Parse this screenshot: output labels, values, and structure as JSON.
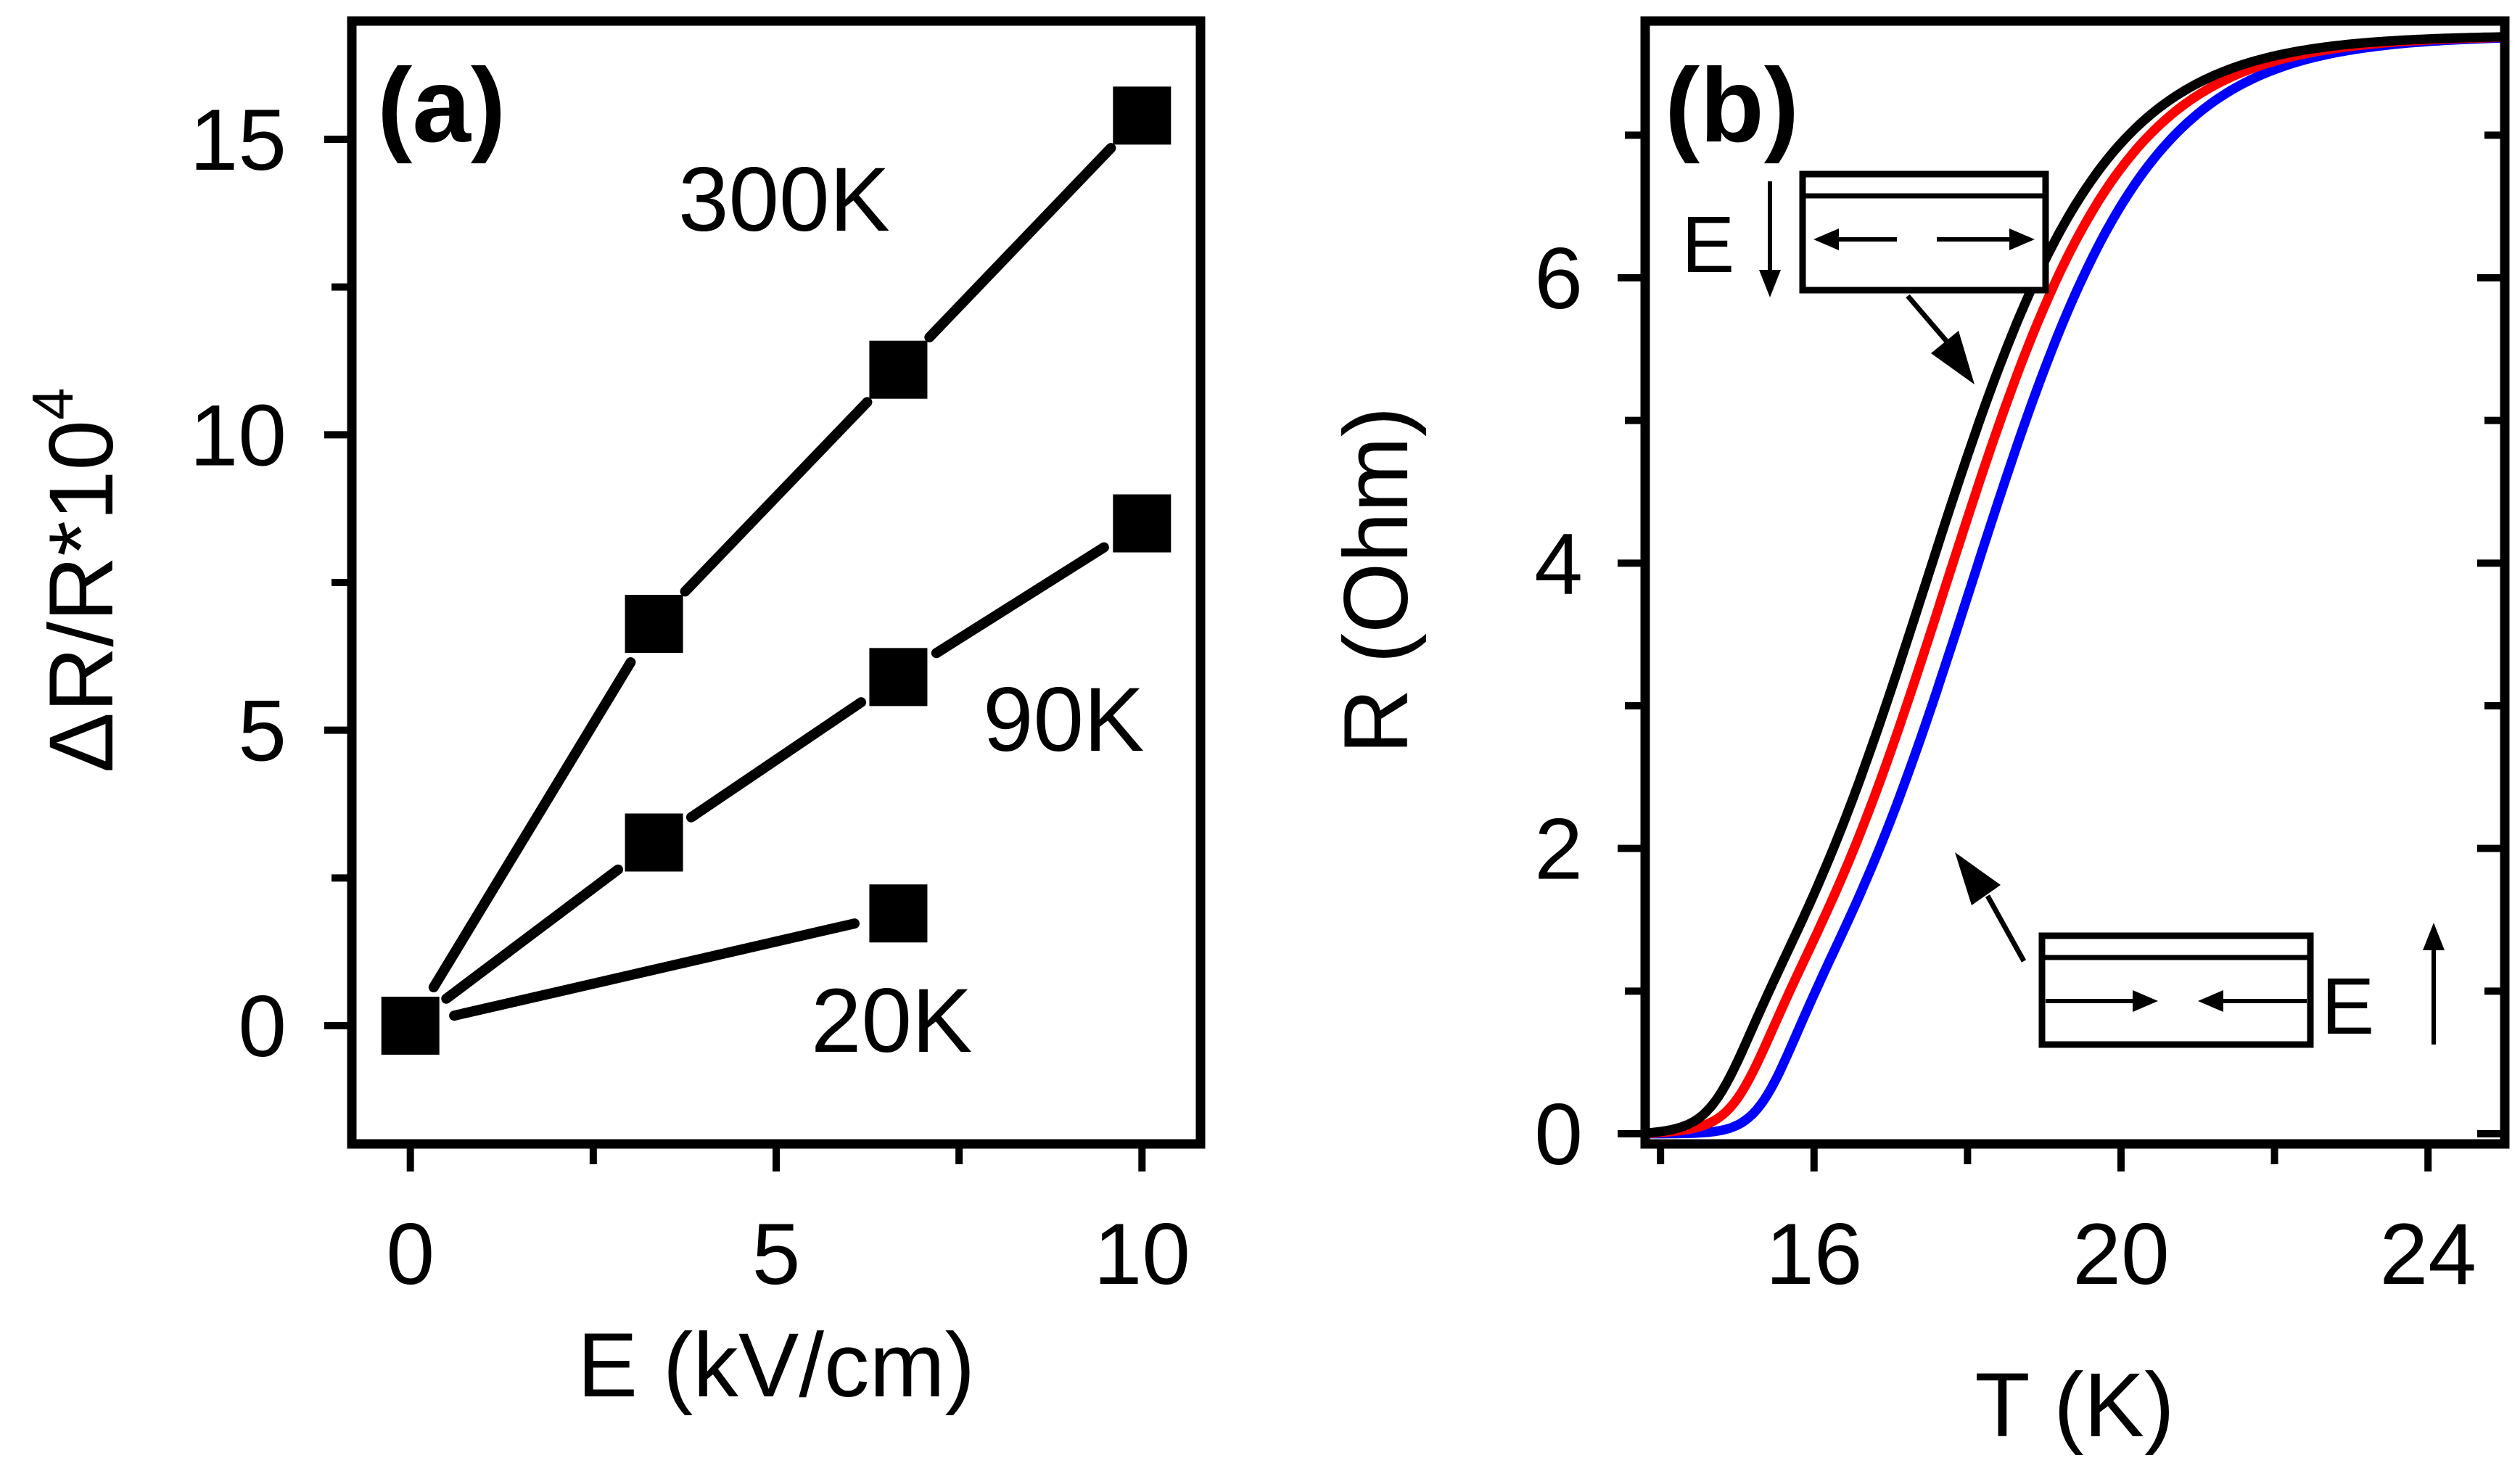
{
  "chart_data": [
    {
      "panel": "(a)",
      "type": "line",
      "xlabel": "E (kV/cm)",
      "ylabel": "ΔR/R*10",
      "ylabel_superscript": "4",
      "xlim": [
        -0.8,
        10.8
      ],
      "ylim": [
        -2,
        17
      ],
      "x_ticks": [
        0,
        5,
        10
      ],
      "y_ticks": [
        0,
        5,
        10,
        15
      ],
      "series": [
        {
          "name": "300K",
          "label": "300K",
          "x": [
            0,
            3.33,
            6.67,
            10
          ],
          "values": [
            0,
            6.8,
            11.1,
            15.4
          ]
        },
        {
          "name": "90K",
          "label": "90K",
          "x": [
            0,
            3.33,
            6.67,
            10
          ],
          "values": [
            0,
            3.1,
            5.9,
            8.5
          ]
        },
        {
          "name": "20K",
          "label": "20K",
          "x": [
            0,
            6.67
          ],
          "values": [
            0,
            1.9
          ]
        }
      ]
    },
    {
      "panel": "(b)",
      "type": "line",
      "xlabel": "T (K)",
      "ylabel": "R (Ohm)",
      "xlim": [
        13.8,
        25
      ],
      "ylim": [
        0,
        7.8
      ],
      "x_ticks": [
        16,
        20,
        24
      ],
      "y_ticks": [
        0,
        2,
        4,
        6
      ],
      "series": [
        {
          "name": "black",
          "color": "#000000",
          "Tc": 17.45
        },
        {
          "name": "red",
          "color": "#ff0000",
          "Tc": 17.72
        },
        {
          "name": "blue",
          "color": "#0000ff",
          "Tc": 18.05
        }
      ],
      "annotations": {
        "top_field_label": "E",
        "bottom_field_label": "E"
      }
    }
  ]
}
